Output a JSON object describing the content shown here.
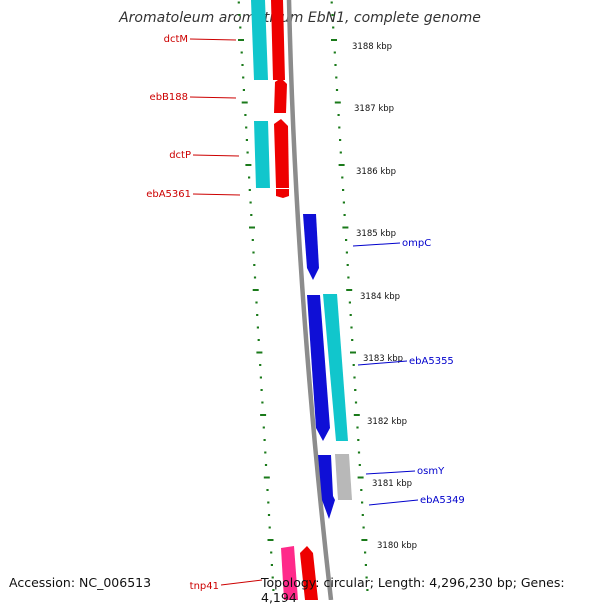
{
  "title": "Aromatoleum aromaticum EbN1, complete genome",
  "footer": {
    "accession": "Accession: NC_006513",
    "summary": "Topology: circular; Length: 4,296,230 bp; Genes: 4,194"
  },
  "colors": {
    "backbone": "#8c8c8c",
    "tick": "#1a7a1a",
    "left_label": "#cc0000",
    "right_label": "#0000cc",
    "cds_red": "#ee0000",
    "cds_cyan": "#11c6cc",
    "cds_blue": "#0f0fd6",
    "cds_gray": "#b8b8b8",
    "cds_pink": "#ff2a8a"
  },
  "scale_labels": [
    "3188 kbp",
    "3187 kbp",
    "3186 kbp",
    "3185 kbp",
    "3184 kbp",
    "3183 kbp",
    "3182 kbp",
    "3181 kbp",
    "3180 kbp"
  ],
  "left_genes": [
    "dctM",
    "ebB188",
    "dctP",
    "ebA5361",
    "tnp41"
  ],
  "right_genes": [
    "ompC",
    "ebA5355",
    "osmY",
    "ebA5349"
  ]
}
